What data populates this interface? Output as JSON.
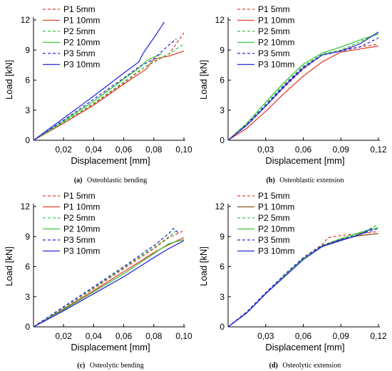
{
  "colors": {
    "P1": "#e0402f",
    "P2": "#3cc83c",
    "P3": "#2a2ad8",
    "P1_10mm_panel_d": "#8a5a1a",
    "axis": "#000000"
  },
  "chart_data": [
    {
      "type": "line",
      "caption": {
        "letter": "(a)",
        "text": "Osteoblastic bending"
      },
      "xlabel": "Displacement [mm]",
      "ylabel": "Load [kN]",
      "xlim": [
        0,
        0.1
      ],
      "ylim": [
        0,
        12
      ],
      "xticks": [
        "0,02",
        "0,04",
        "0,06",
        "0,08",
        "0,10"
      ],
      "yticks": [
        "0",
        "3",
        "6",
        "9",
        "12"
      ],
      "legend_position": "top-left",
      "series": [
        {
          "name": "P1 5mm",
          "color": "#e0402f",
          "dash": true,
          "points": [
            [
              0,
              0
            ],
            [
              0.02,
              1.8
            ],
            [
              0.04,
              3.6
            ],
            [
              0.06,
              5.7
            ],
            [
              0.075,
              7.4
            ],
            [
              0.09,
              8.6
            ],
            [
              0.1,
              10.7
            ]
          ]
        },
        {
          "name": "P1 10mm",
          "color": "#e0402f",
          "dash": false,
          "points": [
            [
              0,
              0
            ],
            [
              0.02,
              1.7
            ],
            [
              0.04,
              3.5
            ],
            [
              0.06,
              5.6
            ],
            [
              0.075,
              7.1
            ],
            [
              0.08,
              8.1
            ],
            [
              0.09,
              8.4
            ],
            [
              0.1,
              8.9
            ]
          ]
        },
        {
          "name": "P2 5mm",
          "color": "#3cc83c",
          "dash": true,
          "points": [
            [
              0,
              0
            ],
            [
              0.02,
              1.8
            ],
            [
              0.04,
              3.7
            ],
            [
              0.06,
              5.8
            ],
            [
              0.07,
              6.9
            ],
            [
              0.08,
              7.9
            ],
            [
              0.09,
              8.6
            ],
            [
              0.1,
              9.6
            ]
          ]
        },
        {
          "name": "P2 10mm",
          "color": "#3cc83c",
          "dash": false,
          "points": [
            [
              0,
              0
            ],
            [
              0.02,
              1.9
            ],
            [
              0.04,
              3.9
            ],
            [
              0.06,
              6.1
            ],
            [
              0.07,
              7.2
            ],
            [
              0.075,
              7.9
            ],
            [
              0.08,
              8.3
            ],
            [
              0.085,
              8.6
            ]
          ]
        },
        {
          "name": "P3 5mm",
          "color": "#2a2ad8",
          "dash": true,
          "points": [
            [
              0,
              0
            ],
            [
              0.02,
              2.0
            ],
            [
              0.04,
              4.1
            ],
            [
              0.06,
              6.2
            ],
            [
              0.07,
              7.3
            ],
            [
              0.08,
              8.1
            ],
            [
              0.09,
              9.5
            ],
            [
              0.095,
              10.1
            ]
          ]
        },
        {
          "name": "P3 10mm",
          "color": "#2a2ad8",
          "dash": false,
          "points": [
            [
              0,
              0
            ],
            [
              0.02,
              2.2
            ],
            [
              0.04,
              4.4
            ],
            [
              0.06,
              6.7
            ],
            [
              0.07,
              7.8
            ],
            [
              0.073,
              8.7
            ],
            [
              0.08,
              10.2
            ],
            [
              0.087,
              11.8
            ]
          ]
        }
      ]
    },
    {
      "type": "line",
      "caption": {
        "letter": "(b)",
        "text": "Osteoblastic extension"
      },
      "xlabel": "Displacement [mm]",
      "ylabel": "Load [kN]",
      "xlim": [
        0,
        0.12
      ],
      "ylim": [
        0,
        12
      ],
      "xticks": [
        "0,03",
        "0,06",
        "0,09",
        "0,12"
      ],
      "yticks": [
        "0",
        "3",
        "6",
        "9",
        "12"
      ],
      "legend_position": "top-left",
      "series": [
        {
          "name": "P1 5mm",
          "color": "#e0402f",
          "dash": true,
          "points": [
            [
              0,
              0
            ],
            [
              0.015,
              1.5
            ],
            [
              0.03,
              3.4
            ],
            [
              0.045,
              5.3
            ],
            [
              0.06,
              7.1
            ],
            [
              0.075,
              8.5
            ],
            [
              0.09,
              9.0
            ],
            [
              0.12,
              9.6
            ]
          ]
        },
        {
          "name": "P1 10mm",
          "color": "#e0402f",
          "dash": false,
          "points": [
            [
              0,
              0
            ],
            [
              0.015,
              1.2
            ],
            [
              0.03,
              2.9
            ],
            [
              0.045,
              4.7
            ],
            [
              0.06,
              6.4
            ],
            [
              0.075,
              7.8
            ],
            [
              0.09,
              8.8
            ],
            [
              0.12,
              9.4
            ]
          ]
        },
        {
          "name": "P2 5mm",
          "color": "#3cc83c",
          "dash": true,
          "points": [
            [
              0,
              0
            ],
            [
              0.015,
              1.6
            ],
            [
              0.03,
              3.6
            ],
            [
              0.045,
              5.6
            ],
            [
              0.06,
              7.4
            ],
            [
              0.075,
              8.6
            ],
            [
              0.09,
              9.0
            ],
            [
              0.105,
              9.8
            ],
            [
              0.12,
              10.7
            ]
          ]
        },
        {
          "name": "P2 10mm",
          "color": "#3cc83c",
          "dash": false,
          "points": [
            [
              0,
              0
            ],
            [
              0.015,
              1.7
            ],
            [
              0.03,
              3.8
            ],
            [
              0.045,
              5.8
            ],
            [
              0.06,
              7.6
            ],
            [
              0.075,
              8.7
            ],
            [
              0.09,
              9.3
            ],
            [
              0.105,
              10.0
            ],
            [
              0.12,
              10.6
            ]
          ]
        },
        {
          "name": "P3 5mm",
          "color": "#2a2ad8",
          "dash": true,
          "points": [
            [
              0,
              0
            ],
            [
              0.015,
              1.6
            ],
            [
              0.03,
              3.5
            ],
            [
              0.045,
              5.5
            ],
            [
              0.06,
              7.3
            ],
            [
              0.075,
              8.5
            ],
            [
              0.09,
              8.9
            ],
            [
              0.105,
              9.3
            ],
            [
              0.12,
              10.2
            ]
          ]
        },
        {
          "name": "P3 10mm",
          "color": "#2a2ad8",
          "dash": false,
          "points": [
            [
              0,
              0
            ],
            [
              0.015,
              1.5
            ],
            [
              0.03,
              3.4
            ],
            [
              0.045,
              5.4
            ],
            [
              0.06,
              7.2
            ],
            [
              0.075,
              8.5
            ],
            [
              0.09,
              8.9
            ],
            [
              0.105,
              9.6
            ],
            [
              0.12,
              10.8
            ]
          ]
        }
      ]
    },
    {
      "type": "line",
      "caption": {
        "letter": "(c)",
        "text": "Osteolytic bending"
      },
      "xlabel": "Displacement [mm]",
      "ylabel": "Load [kN]",
      "xlim": [
        0,
        0.1
      ],
      "ylim": [
        0,
        12
      ],
      "xticks": [
        "0,02",
        "0,04",
        "0,06",
        "0,08",
        "0,10"
      ],
      "yticks": [
        "0",
        "3",
        "6",
        "9",
        "12"
      ],
      "legend_position": "top-left",
      "series": [
        {
          "name": "P1 5mm",
          "color": "#e0402f",
          "dash": true,
          "points": [
            [
              0,
              0
            ],
            [
              0.02,
              1.9
            ],
            [
              0.04,
              3.8
            ],
            [
              0.06,
              5.8
            ],
            [
              0.08,
              7.8
            ],
            [
              0.09,
              8.9
            ],
            [
              0.1,
              9.6
            ]
          ]
        },
        {
          "name": "P1 10mm",
          "color": "#e0402f",
          "dash": false,
          "points": [
            [
              0,
              0
            ],
            [
              0.02,
              1.8
            ],
            [
              0.04,
              3.6
            ],
            [
              0.06,
              5.5
            ],
            [
              0.08,
              7.4
            ],
            [
              0.09,
              8.2
            ],
            [
              0.1,
              8.9
            ]
          ]
        },
        {
          "name": "P2 5mm",
          "color": "#3cc83c",
          "dash": true,
          "points": [
            [
              0,
              0
            ],
            [
              0.02,
              1.9
            ],
            [
              0.04,
              3.9
            ],
            [
              0.06,
              5.9
            ],
            [
              0.08,
              7.9
            ],
            [
              0.09,
              9.0
            ],
            [
              0.095,
              9.6
            ]
          ]
        },
        {
          "name": "P2 10mm",
          "color": "#3cc83c",
          "dash": false,
          "points": [
            [
              0,
              0
            ],
            [
              0.02,
              1.7
            ],
            [
              0.04,
              3.5
            ],
            [
              0.06,
              5.3
            ],
            [
              0.08,
              7.3
            ],
            [
              0.09,
              8.3
            ],
            [
              0.1,
              8.7
            ]
          ]
        },
        {
          "name": "P3 5mm",
          "color": "#2a2ad8",
          "dash": true,
          "points": [
            [
              0,
              0
            ],
            [
              0.02,
              2.0
            ],
            [
              0.04,
              4.0
            ],
            [
              0.06,
              6.0
            ],
            [
              0.08,
              8.1
            ],
            [
              0.09,
              9.3
            ],
            [
              0.093,
              9.8
            ],
            [
              0.097,
              9.3
            ]
          ]
        },
        {
          "name": "P3 10mm",
          "color": "#2a2ad8",
          "dash": false,
          "points": [
            [
              0,
              0
            ],
            [
              0.02,
              1.6
            ],
            [
              0.04,
              3.3
            ],
            [
              0.06,
              5.0
            ],
            [
              0.08,
              6.9
            ],
            [
              0.09,
              7.8
            ],
            [
              0.1,
              8.6
            ]
          ]
        }
      ]
    },
    {
      "type": "line",
      "caption": {
        "letter": "(d)",
        "text": "Osteolytic extension"
      },
      "xlabel": "Displacement [mm]",
      "ylabel": "Load [kN]",
      "xlim": [
        0,
        0.12
      ],
      "ylim": [
        0,
        12
      ],
      "xticks": [
        "0,03",
        "0,06",
        "0,09",
        "0,12"
      ],
      "yticks": [
        "0",
        "3",
        "6",
        "9",
        "12"
      ],
      "legend_position": "top-left",
      "series": [
        {
          "name": "P1 5mm",
          "color": "#e0402f",
          "dash": true,
          "points": [
            [
              0,
              0
            ],
            [
              0.015,
              1.5
            ],
            [
              0.03,
              3.4
            ],
            [
              0.045,
              5.2
            ],
            [
              0.06,
              6.9
            ],
            [
              0.075,
              8.2
            ],
            [
              0.08,
              8.9
            ],
            [
              0.09,
              9.1
            ],
            [
              0.105,
              9.3
            ],
            [
              0.12,
              9.5
            ]
          ]
        },
        {
          "name": "P1 10mm",
          "color": "#8a5a1a",
          "dash": false,
          "points": [
            [
              0,
              0
            ],
            [
              0.015,
              1.4
            ],
            [
              0.03,
              3.3
            ],
            [
              0.045,
              5.1
            ],
            [
              0.06,
              6.8
            ],
            [
              0.075,
              8.0
            ],
            [
              0.09,
              8.7
            ],
            [
              0.105,
              9.1
            ],
            [
              0.12,
              9.3
            ]
          ]
        },
        {
          "name": "P2 5mm",
          "color": "#3cc83c",
          "dash": true,
          "points": [
            [
              0,
              0
            ],
            [
              0.015,
              1.5
            ],
            [
              0.03,
              3.4
            ],
            [
              0.045,
              5.2
            ],
            [
              0.06,
              6.9
            ],
            [
              0.075,
              8.1
            ],
            [
              0.09,
              8.8
            ],
            [
              0.105,
              9.3
            ],
            [
              0.12,
              10.2
            ]
          ]
        },
        {
          "name": "P2 10mm",
          "color": "#3cc83c",
          "dash": false,
          "points": [
            [
              0,
              0
            ],
            [
              0.015,
              1.4
            ],
            [
              0.03,
              3.3
            ],
            [
              0.045,
              5.1
            ],
            [
              0.06,
              6.8
            ],
            [
              0.075,
              8.1
            ],
            [
              0.09,
              8.8
            ],
            [
              0.105,
              9.4
            ],
            [
              0.12,
              9.9
            ]
          ]
        },
        {
          "name": "P3 5mm",
          "color": "#2a2ad8",
          "dash": true,
          "points": [
            [
              0,
              0
            ],
            [
              0.015,
              1.5
            ],
            [
              0.03,
              3.4
            ],
            [
              0.045,
              5.2
            ],
            [
              0.06,
              6.9
            ],
            [
              0.075,
              8.1
            ],
            [
              0.09,
              8.7
            ],
            [
              0.105,
              9.2
            ],
            [
              0.12,
              9.8
            ]
          ]
        },
        {
          "name": "P3 10mm",
          "color": "#2a2ad8",
          "dash": false,
          "points": [
            [
              0,
              0
            ],
            [
              0.015,
              1.4
            ],
            [
              0.03,
              3.3
            ],
            [
              0.045,
              5.0
            ],
            [
              0.06,
              6.7
            ],
            [
              0.075,
              8.0
            ],
            [
              0.09,
              8.6
            ],
            [
              0.105,
              9.2
            ],
            [
              0.115,
              9.8
            ]
          ]
        }
      ]
    }
  ]
}
